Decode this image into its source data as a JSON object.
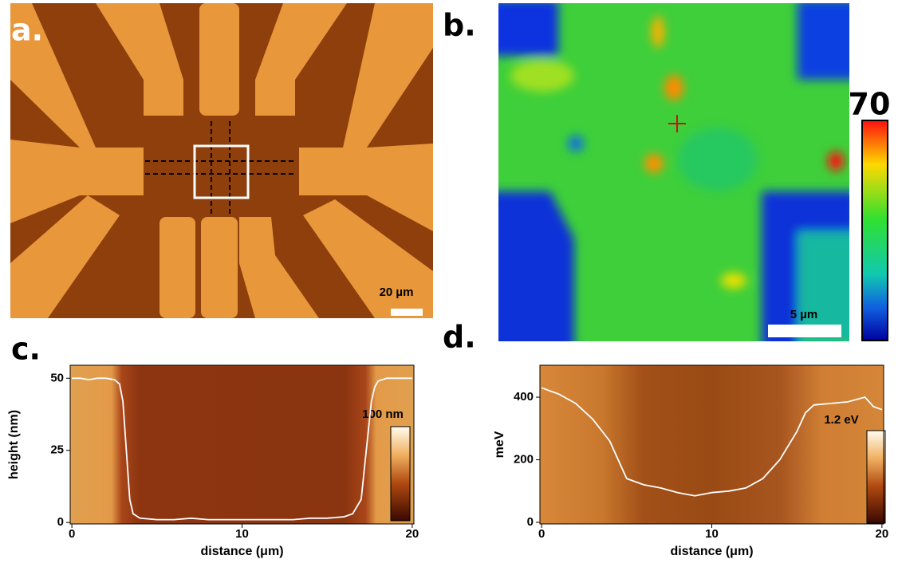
{
  "panels": {
    "a": {
      "label": "a.",
      "scale_bar": "20 µm"
    },
    "b": {
      "label": "b.",
      "scale_bar": "5 µm",
      "colorbar_label": "70"
    }
  },
  "chart_data": [
    {
      "type": "line",
      "label": "c.",
      "x_label": "distance (μm)",
      "y_label": "height (nm)",
      "colorbar_label": "100 nm",
      "x": [
        0,
        0.5,
        1,
        1.5,
        2,
        2.5,
        2.8,
        3.0,
        3.2,
        3.4,
        3.6,
        4,
        5,
        6,
        7,
        8,
        9,
        10,
        11,
        12,
        13,
        14,
        15,
        16,
        16.5,
        17,
        17.3,
        17.6,
        17.8,
        18,
        18.5,
        19,
        19.5,
        20
      ],
      "values": [
        50,
        50,
        49.5,
        50,
        50,
        49.5,
        48,
        42,
        25,
        8,
        3,
        1.5,
        1,
        1,
        1.5,
        1,
        1,
        1,
        1,
        1,
        1,
        1.5,
        1.5,
        2,
        3,
        8,
        25,
        42,
        47,
        49,
        50,
        50,
        50,
        50
      ],
      "color": "#ffffff",
      "xlim": [
        -0.1,
        20.1
      ],
      "ylim": [
        -0.5,
        54.5
      ],
      "xticks": [
        0,
        10,
        20
      ],
      "yticks": [
        0,
        25,
        50
      ]
    },
    {
      "type": "line",
      "label": "d.",
      "x_label": "distance (μm)",
      "y_label": "meV",
      "colorbar_label": "1.2 eV",
      "x": [
        0,
        1,
        2,
        3,
        4,
        4.5,
        5,
        6,
        7,
        8,
        9,
        10,
        11,
        12,
        13,
        14,
        15,
        15.5,
        16,
        17,
        18,
        19,
        19.5,
        20
      ],
      "values": [
        430,
        410,
        380,
        330,
        260,
        200,
        140,
        120,
        110,
        95,
        85,
        95,
        100,
        110,
        140,
        200,
        290,
        350,
        375,
        380,
        385,
        400,
        370,
        360
      ],
      "color": "#ffffff",
      "xlim": [
        -0.1,
        20.1
      ],
      "ylim": [
        -5,
        502
      ],
      "xticks": [
        0,
        10,
        20
      ],
      "yticks": [
        0,
        200,
        400
      ]
    }
  ]
}
